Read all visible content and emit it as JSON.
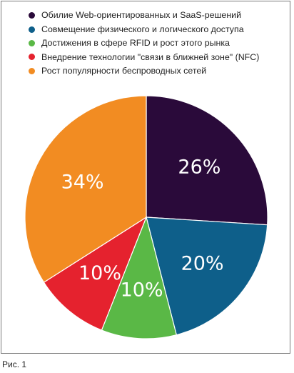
{
  "chart_data": {
    "type": "pie",
    "title": "",
    "categories": [
      "Обилие Web-ориентированных и SaaS-решений",
      "Совмещение физического и логического доступа",
      "Достижения в сфере RFID и рост этого рынка",
      "Внедрение технологии \"связи в ближней зоне\" (NFC)",
      "Рост популярности беспроводных сетей"
    ],
    "values": [
      26,
      20,
      10,
      10,
      34
    ],
    "labels": [
      "26%",
      "20%",
      "10%",
      "10%",
      "34%"
    ],
    "colors": [
      "#2a0a3a",
      "#0e5f8a",
      "#5ab846",
      "#e5222e",
      "#f28c22"
    ],
    "legend_position": "top-left",
    "start_angle_deg": 0,
    "direction": "clockwise"
  },
  "caption": "Рис. 1"
}
